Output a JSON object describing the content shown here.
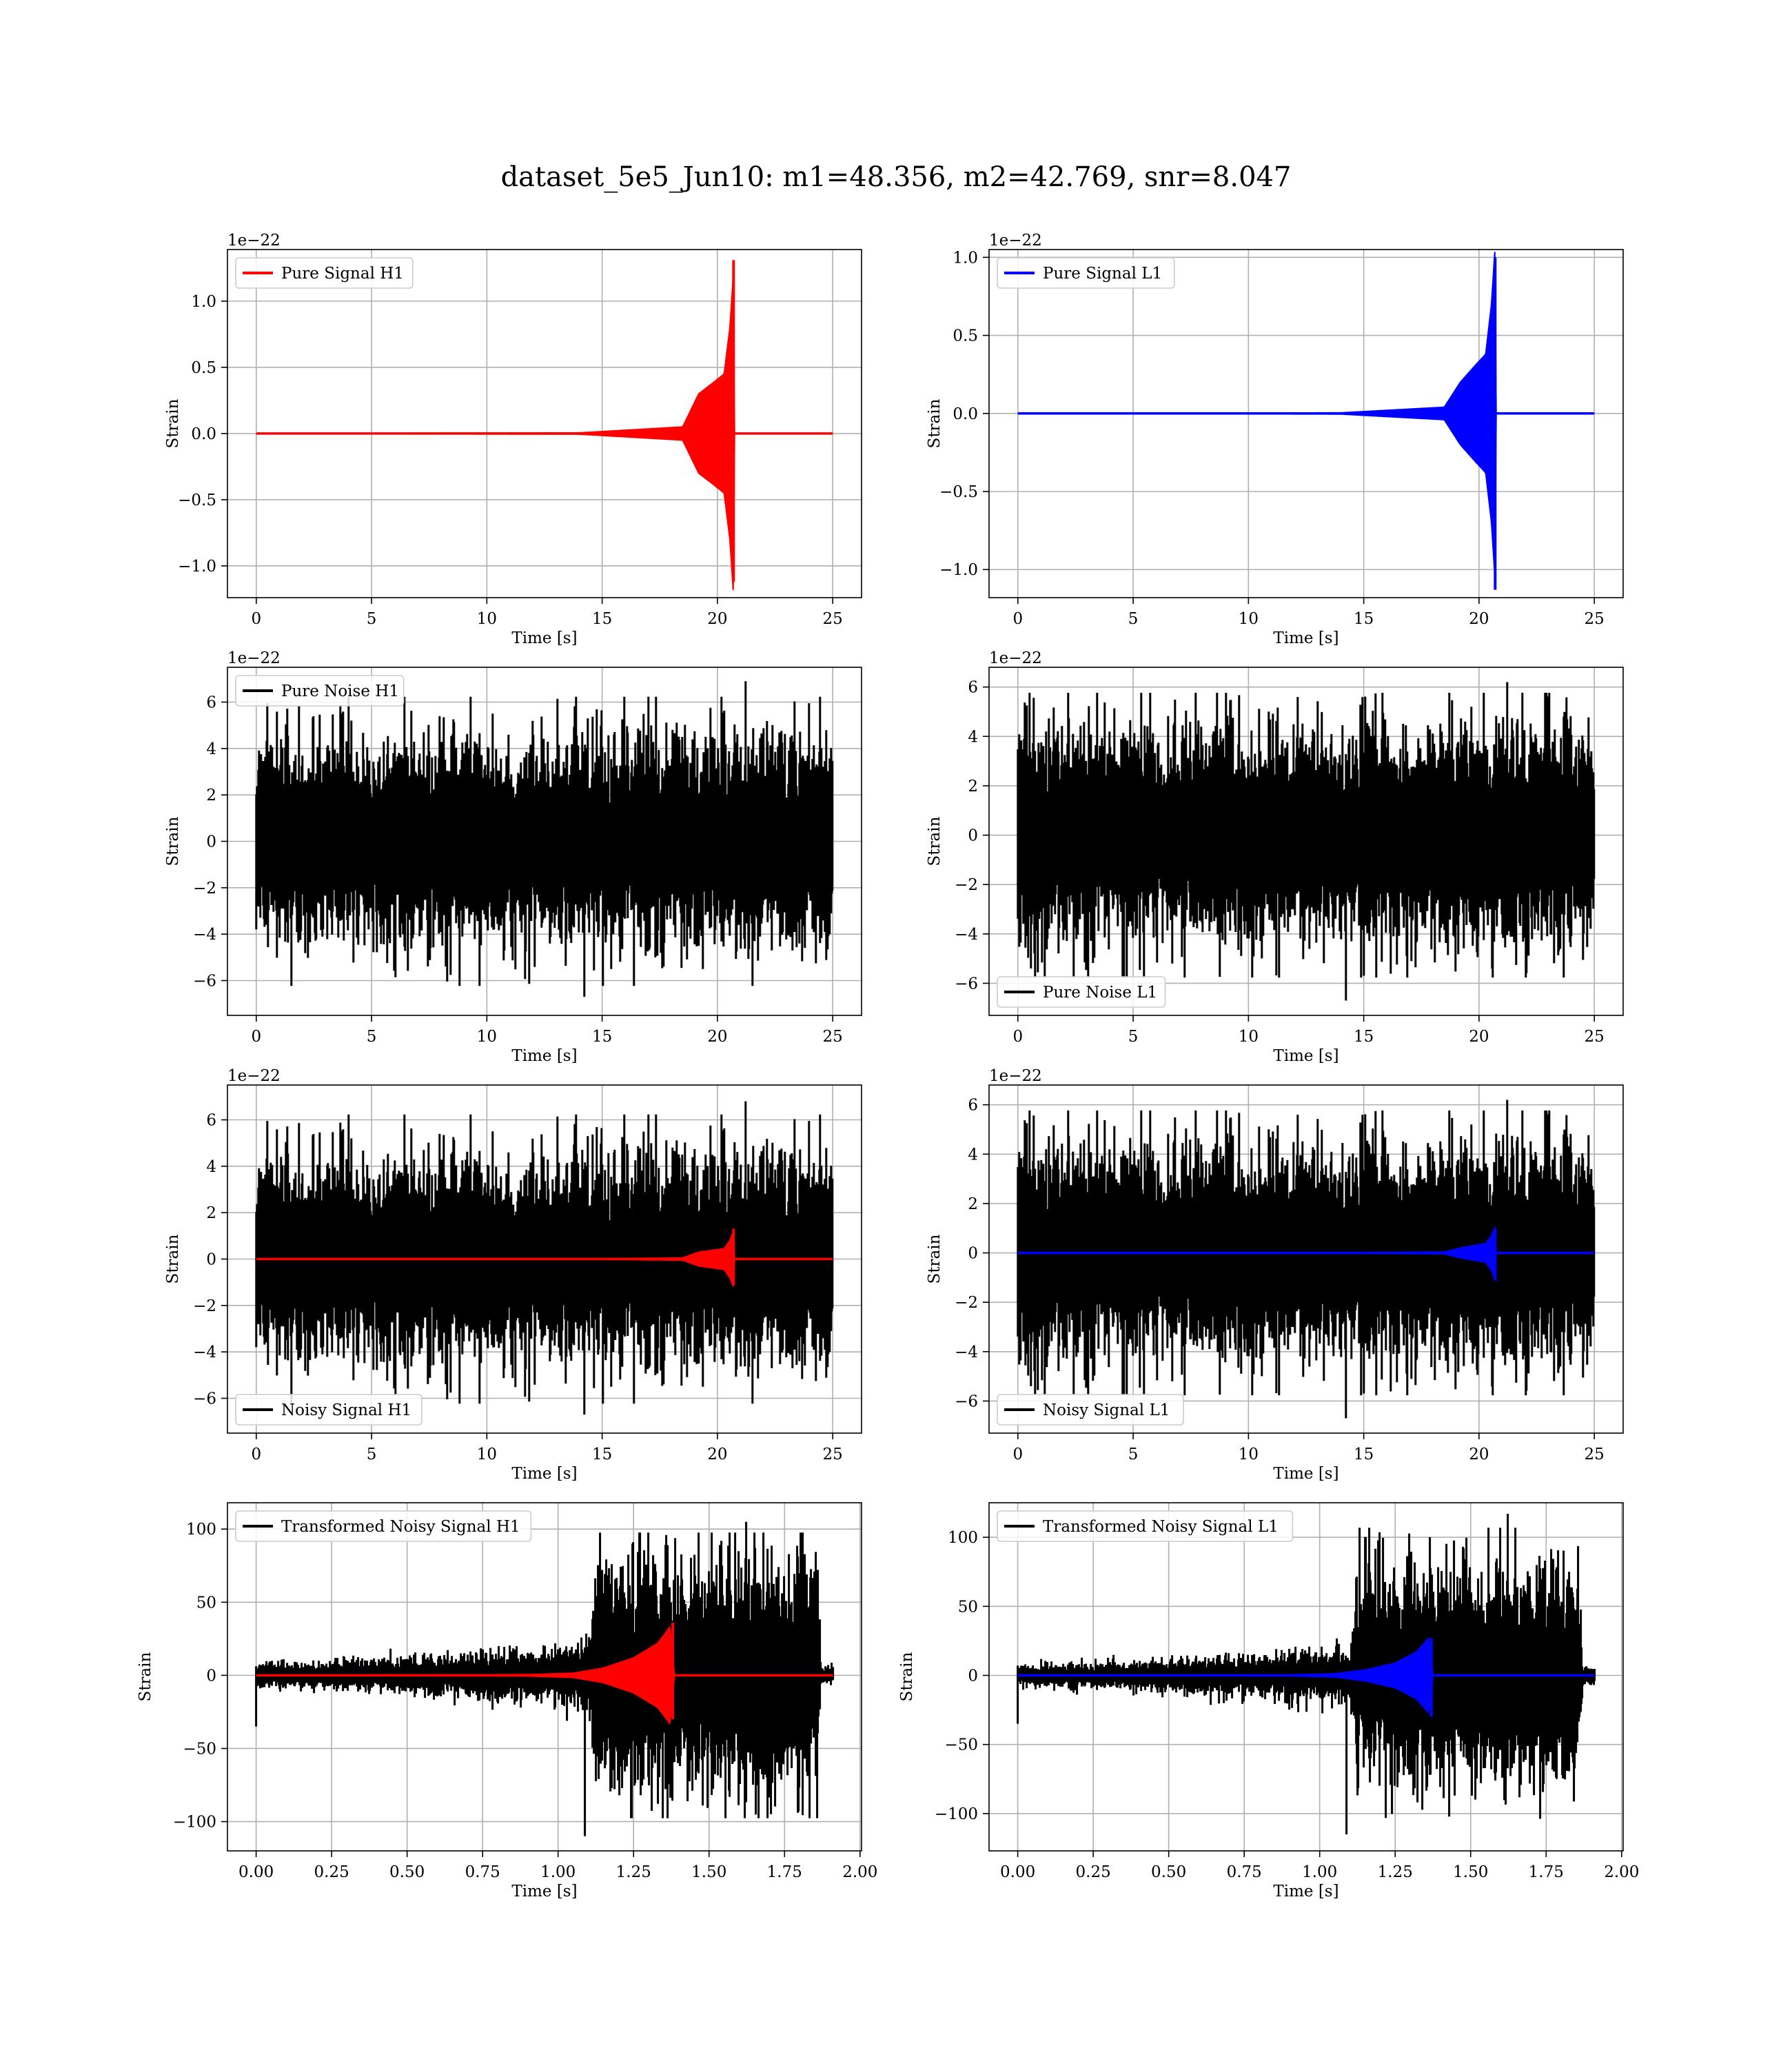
{
  "figure": {
    "title": "dataset_5e5_Jun10: m1=48.356, m2=42.769, snr=8.047"
  },
  "colors": {
    "signal_h1": "#ff0000",
    "signal_l1": "#0000ff",
    "noise": "#000000",
    "grid": "#b0b0b0"
  },
  "chart_data": [
    {
      "id": "pure-signal-h1",
      "type": "line",
      "title": "",
      "xlabel": "Time [s]",
      "ylabel": "Strain",
      "offset_label": "1e−22",
      "xlim": [
        -1.25,
        26.25
      ],
      "ylim": [
        -1.24,
        1.39
      ],
      "xticks": [
        0,
        5,
        10,
        15,
        20,
        25
      ],
      "xtick_labels": [
        "0",
        "5",
        "10",
        "15",
        "20",
        "25"
      ],
      "yticks": [
        -1.0,
        -0.5,
        0.0,
        0.5,
        1.0
      ],
      "ytick_labels": [
        "−1.0",
        "−0.5",
        "0.0",
        "0.5",
        "1.0"
      ],
      "grid": true,
      "legend": {
        "position": "top-left",
        "entries": [
          {
            "label": "Pure Signal H1",
            "color": "#ff0000"
          }
        ]
      },
      "series": [
        {
          "name": "Pure Signal H1",
          "color": "#ff0000",
          "kind": "chirp",
          "x_start": 0,
          "x_end": 25,
          "t_merge": 20.7,
          "peak_pos": 1.31,
          "peak_neg": -1.12,
          "envelope": [
            [
              0,
              0.0
            ],
            [
              14,
              0.005
            ],
            [
              18.5,
              0.05
            ],
            [
              19.2,
              0.3
            ],
            [
              19.8,
              0.38
            ],
            [
              20.3,
              0.45
            ],
            [
              20.55,
              0.8
            ],
            [
              20.7,
              1.2
            ],
            [
              20.75,
              0.0
            ],
            [
              25,
              0.0
            ]
          ]
        }
      ]
    },
    {
      "id": "pure-signal-l1",
      "type": "line",
      "title": "",
      "xlabel": "Time [s]",
      "ylabel": "Strain",
      "offset_label": "1e−22",
      "xlim": [
        -1.25,
        26.25
      ],
      "ylim": [
        -1.18,
        1.05
      ],
      "xticks": [
        0,
        5,
        10,
        15,
        20,
        25
      ],
      "xtick_labels": [
        "0",
        "5",
        "10",
        "15",
        "20",
        "25"
      ],
      "yticks": [
        -1.0,
        -0.5,
        0.0,
        0.5,
        1.0
      ],
      "ytick_labels": [
        "−1.0",
        "−0.5",
        "0.0",
        "0.5",
        "1.0"
      ],
      "grid": true,
      "legend": {
        "position": "top-left",
        "entries": [
          {
            "label": "Pure Signal L1",
            "color": "#0000ff"
          }
        ]
      },
      "series": [
        {
          "name": "Pure Signal L1",
          "color": "#0000ff",
          "kind": "chirp",
          "x_start": 0,
          "x_end": 25,
          "t_merge": 20.7,
          "peak_pos": 1.0,
          "peak_neg": -1.13,
          "envelope": [
            [
              0,
              0.0
            ],
            [
              14,
              0.004
            ],
            [
              18.5,
              0.04
            ],
            [
              19.2,
              0.2
            ],
            [
              19.8,
              0.3
            ],
            [
              20.3,
              0.38
            ],
            [
              20.55,
              0.7
            ],
            [
              20.7,
              1.05
            ],
            [
              20.75,
              0.0
            ],
            [
              25,
              0.0
            ]
          ]
        }
      ]
    },
    {
      "id": "pure-noise-h1",
      "type": "line",
      "title": "",
      "xlabel": "Time [s]",
      "ylabel": "Strain",
      "offset_label": "1e−22",
      "xlim": [
        -1.25,
        26.25
      ],
      "ylim": [
        -7.5,
        7.5
      ],
      "xticks": [
        0,
        5,
        10,
        15,
        20,
        25
      ],
      "xtick_labels": [
        "0",
        "5",
        "10",
        "15",
        "20",
        "25"
      ],
      "yticks": [
        -6,
        -4,
        -2,
        0,
        2,
        4,
        6
      ],
      "ytick_labels": [
        "−6",
        "−4",
        "−2",
        "0",
        "2",
        "4",
        "6"
      ],
      "grid": true,
      "legend": {
        "position": "top-left",
        "entries": [
          {
            "label": "Pure Noise H1",
            "color": "#000000"
          }
        ]
      },
      "series": [
        {
          "name": "Pure Noise H1",
          "color": "#000000",
          "kind": "noise",
          "x_start": 0,
          "x_end": 25,
          "sigma": 1.4,
          "max": 6.9,
          "min": -6.7,
          "seed": 11
        }
      ]
    },
    {
      "id": "pure-noise-l1",
      "type": "line",
      "title": "",
      "xlabel": "Time [s]",
      "ylabel": "Strain",
      "offset_label": "1e−22",
      "xlim": [
        -1.25,
        26.25
      ],
      "ylim": [
        -7.3,
        6.8
      ],
      "xticks": [
        0,
        5,
        10,
        15,
        20,
        25
      ],
      "xtick_labels": [
        "0",
        "5",
        "10",
        "15",
        "20",
        "25"
      ],
      "yticks": [
        -6,
        -4,
        -2,
        0,
        2,
        4,
        6
      ],
      "ytick_labels": [
        "−6",
        "−4",
        "−2",
        "0",
        "2",
        "4",
        "6"
      ],
      "grid": true,
      "legend": {
        "position": "bottom-left",
        "entries": [
          {
            "label": "Pure Noise L1",
            "color": "#000000"
          }
        ]
      },
      "series": [
        {
          "name": "Pure Noise L1",
          "color": "#000000",
          "kind": "noise",
          "x_start": 0,
          "x_end": 25,
          "sigma": 1.4,
          "max": 6.2,
          "min": -6.7,
          "seed": 23
        }
      ]
    },
    {
      "id": "noisy-signal-h1",
      "type": "line",
      "title": "",
      "xlabel": "Time [s]",
      "ylabel": "Strain",
      "offset_label": "1e−22",
      "xlim": [
        -1.25,
        26.25
      ],
      "ylim": [
        -7.5,
        7.5
      ],
      "xticks": [
        0,
        5,
        10,
        15,
        20,
        25
      ],
      "xtick_labels": [
        "0",
        "5",
        "10",
        "15",
        "20",
        "25"
      ],
      "yticks": [
        -6,
        -4,
        -2,
        0,
        2,
        4,
        6
      ],
      "ytick_labels": [
        "−6",
        "−4",
        "−2",
        "0",
        "2",
        "4",
        "6"
      ],
      "grid": true,
      "legend": {
        "position": "bottom-left",
        "entries": [
          {
            "label": "Noisy Signal H1",
            "color": "#000000"
          }
        ]
      },
      "series": [
        {
          "name": "Noisy Signal H1",
          "color": "#000000",
          "kind": "noise",
          "x_start": 0,
          "x_end": 25,
          "sigma": 1.4,
          "max": 6.8,
          "min": -6.7,
          "seed": 11
        },
        {
          "name": "",
          "color": "#ff0000",
          "kind": "chirp",
          "x_start": 0,
          "x_end": 25,
          "t_merge": 20.7,
          "peak_pos": 1.31,
          "peak_neg": -1.12,
          "envelope": [
            [
              0,
              0.0
            ],
            [
              14,
              0.005
            ],
            [
              18.5,
              0.05
            ],
            [
              19.2,
              0.3
            ],
            [
              19.8,
              0.38
            ],
            [
              20.3,
              0.45
            ],
            [
              20.55,
              0.8
            ],
            [
              20.7,
              1.2
            ],
            [
              20.75,
              0.0
            ],
            [
              25,
              0.0
            ]
          ]
        }
      ]
    },
    {
      "id": "noisy-signal-l1",
      "type": "line",
      "title": "",
      "xlabel": "Time [s]",
      "ylabel": "Strain",
      "offset_label": "1e−22",
      "xlim": [
        -1.25,
        26.25
      ],
      "ylim": [
        -7.3,
        6.8
      ],
      "xticks": [
        0,
        5,
        10,
        15,
        20,
        25
      ],
      "xtick_labels": [
        "0",
        "5",
        "10",
        "15",
        "20",
        "25"
      ],
      "yticks": [
        -6,
        -4,
        -2,
        0,
        2,
        4,
        6
      ],
      "ytick_labels": [
        "−6",
        "−4",
        "−2",
        "0",
        "2",
        "4",
        "6"
      ],
      "grid": true,
      "legend": {
        "position": "bottom-left",
        "entries": [
          {
            "label": "Noisy Signal L1",
            "color": "#000000"
          }
        ]
      },
      "series": [
        {
          "name": "Noisy Signal L1",
          "color": "#000000",
          "kind": "noise",
          "x_start": 0,
          "x_end": 25,
          "sigma": 1.4,
          "max": 6.2,
          "min": -6.7,
          "seed": 23
        },
        {
          "name": "",
          "color": "#0000ff",
          "kind": "chirp",
          "x_start": 0,
          "x_end": 25,
          "t_merge": 20.7,
          "peak_pos": 1.0,
          "peak_neg": -1.13,
          "envelope": [
            [
              0,
              0.0
            ],
            [
              14,
              0.004
            ],
            [
              18.5,
              0.04
            ],
            [
              19.2,
              0.2
            ],
            [
              19.8,
              0.3
            ],
            [
              20.3,
              0.38
            ],
            [
              20.55,
              0.7
            ],
            [
              20.7,
              1.05
            ],
            [
              20.75,
              0.0
            ],
            [
              25,
              0.0
            ]
          ]
        }
      ]
    },
    {
      "id": "transformed-noisy-signal-h1",
      "type": "line",
      "title": "",
      "xlabel": "Time [s]",
      "ylabel": "Strain",
      "offset_label": "",
      "xlim": [
        -0.095,
        2.005
      ],
      "ylim": [
        -120,
        118
      ],
      "xticks": [
        0.0,
        0.25,
        0.5,
        0.75,
        1.0,
        1.25,
        1.5,
        1.75,
        2.0
      ],
      "xtick_labels": [
        "0.00",
        "0.25",
        "0.50",
        "0.75",
        "1.00",
        "1.25",
        "1.50",
        "1.75",
        "2.00"
      ],
      "yticks": [
        -100,
        -50,
        0,
        50,
        100
      ],
      "ytick_labels": [
        "−100",
        "−50",
        "0",
        "50",
        "100"
      ],
      "grid": true,
      "legend": {
        "position": "top-left",
        "entries": [
          {
            "label": "Transformed Noisy Signal H1",
            "color": "#000000"
          }
        ]
      },
      "series": [
        {
          "name": "Transformed Noisy Signal H1",
          "color": "#000000",
          "kind": "noise",
          "x_start": 0,
          "x_end": 1.91,
          "max": 105,
          "min": -110,
          "seed": 37,
          "first_value": -35,
          "sigma_profile": [
            [
              0,
              2.5
            ],
            [
              0.4,
              3.5
            ],
            [
              0.8,
              5
            ],
            [
              1.1,
              7
            ],
            [
              1.12,
              24
            ],
            [
              1.5,
              26
            ],
            [
              1.86,
              24
            ],
            [
              1.87,
              2
            ],
            [
              1.91,
              2
            ]
          ]
        },
        {
          "name": "",
          "color": "#ff0000",
          "kind": "chirp",
          "x_start": 0,
          "x_end": 1.91,
          "t_merge": 1.38,
          "peak_pos": 36,
          "peak_neg": -30,
          "envelope": [
            [
              0,
              0.0
            ],
            [
              0.9,
              0.5
            ],
            [
              1.05,
              1.5
            ],
            [
              1.15,
              5
            ],
            [
              1.25,
              12
            ],
            [
              1.33,
              22
            ],
            [
              1.37,
              33
            ],
            [
              1.385,
              0.0
            ],
            [
              1.91,
              0.0
            ]
          ]
        }
      ]
    },
    {
      "id": "transformed-noisy-signal-l1",
      "type": "line",
      "title": "",
      "xlabel": "Time [s]",
      "ylabel": "Strain",
      "offset_label": "",
      "xlim": [
        -0.095,
        2.005
      ],
      "ylim": [
        -127,
        125
      ],
      "xticks": [
        0.0,
        0.25,
        0.5,
        0.75,
        1.0,
        1.25,
        1.5,
        1.75,
        2.0
      ],
      "xtick_labels": [
        "0.00",
        "0.25",
        "0.50",
        "0.75",
        "1.00",
        "1.25",
        "1.50",
        "1.75",
        "2.00"
      ],
      "yticks": [
        -100,
        -50,
        0,
        50,
        100
      ],
      "ytick_labels": [
        "−100",
        "−50",
        "0",
        "50",
        "100"
      ],
      "grid": true,
      "legend": {
        "position": "top-left",
        "entries": [
          {
            "label": "Transformed Noisy Signal L1",
            "color": "#000000"
          }
        ]
      },
      "series": [
        {
          "name": "Transformed Noisy Signal L1",
          "color": "#000000",
          "kind": "noise",
          "x_start": 0,
          "x_end": 1.91,
          "max": 117,
          "min": -115,
          "seed": 53,
          "first_value": -35,
          "sigma_profile": [
            [
              0,
              2.5
            ],
            [
              0.4,
              3.5
            ],
            [
              0.8,
              5
            ],
            [
              1.1,
              7
            ],
            [
              1.12,
              24
            ],
            [
              1.5,
              26
            ],
            [
              1.86,
              24
            ],
            [
              1.87,
              2
            ],
            [
              1.91,
              2
            ]
          ]
        },
        {
          "name": "",
          "color": "#0000ff",
          "kind": "chirp",
          "x_start": 0,
          "x_end": 1.91,
          "t_merge": 1.37,
          "peak_pos": 27,
          "peak_neg": -30,
          "envelope": [
            [
              0,
              0.0
            ],
            [
              0.9,
              0.4
            ],
            [
              1.05,
              1.2
            ],
            [
              1.15,
              4
            ],
            [
              1.25,
              9
            ],
            [
              1.32,
              17
            ],
            [
              1.36,
              27
            ],
            [
              1.375,
              0.0
            ],
            [
              1.91,
              0.0
            ]
          ]
        }
      ]
    }
  ]
}
